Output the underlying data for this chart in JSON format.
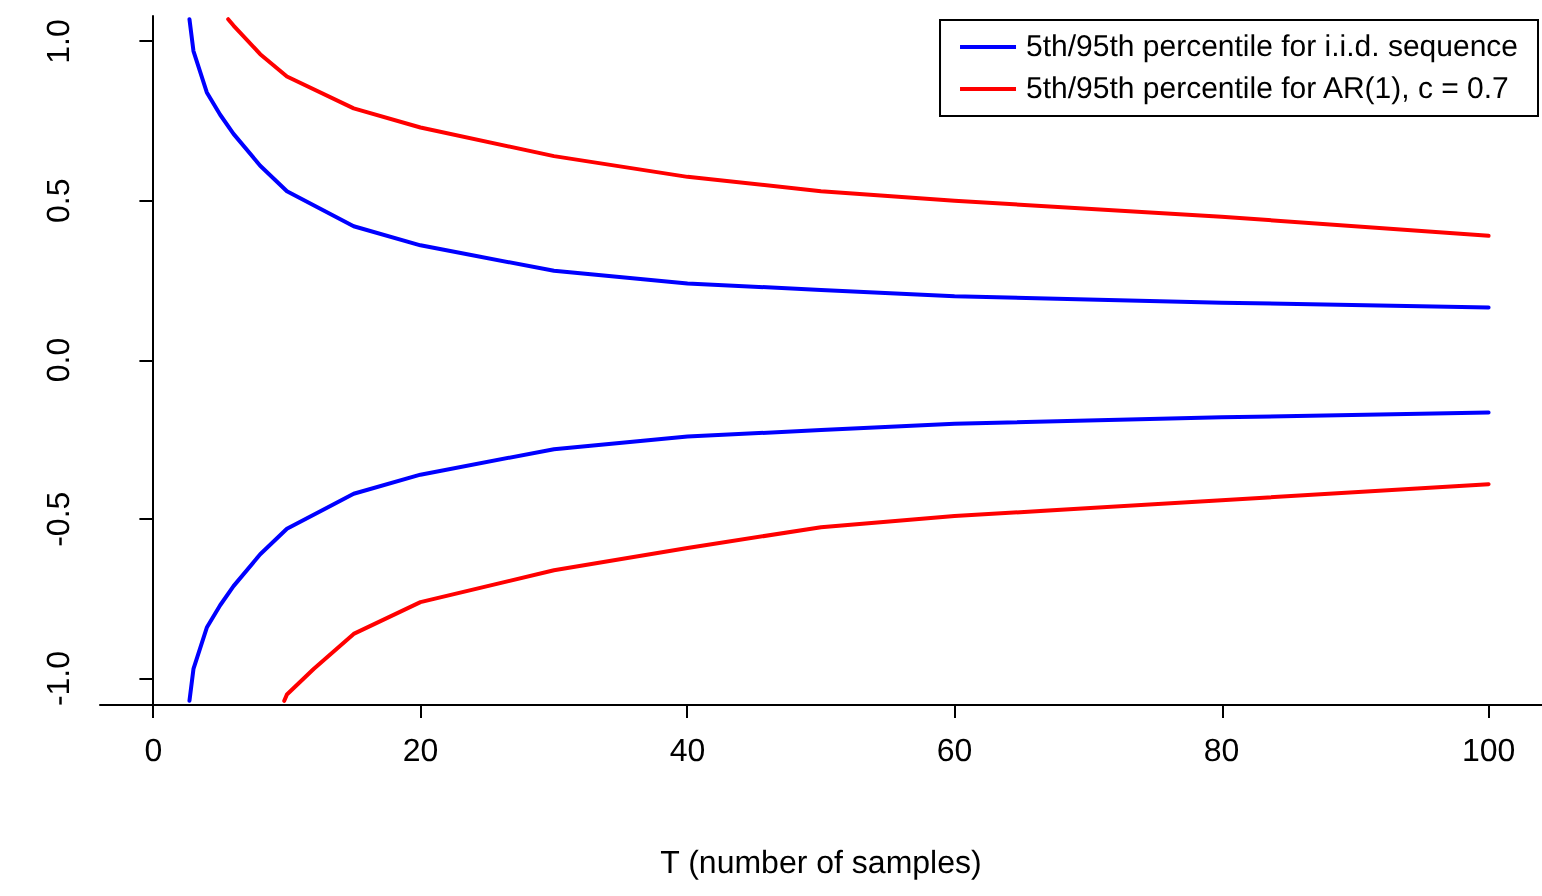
{
  "chart_data": {
    "type": "line",
    "xlabel": "T (number of samples)",
    "xlim": [
      -4,
      104
    ],
    "xticks": [
      0,
      20,
      40,
      60,
      80,
      100
    ],
    "ylim": [
      -1.08,
      1.08
    ],
    "yticks": [
      {
        "value": -1,
        "label": "-1.0"
      },
      {
        "value": -0.5,
        "label": "-0.5"
      },
      {
        "value": 0,
        "label": "0.0"
      },
      {
        "value": 0.5,
        "label": "0.5"
      },
      {
        "value": 1,
        "label": "1.0"
      }
    ],
    "grid": false,
    "legend": "top right",
    "marker": "none",
    "line_style": "solid",
    "series": [
      {
        "name": "5th/95th percentile for i.i.d. sequence",
        "color": "#0000ff",
        "x": [
          2.7,
          3,
          4,
          5,
          6,
          8,
          10,
          15,
          20,
          30,
          40,
          50,
          60,
          80,
          100
        ],
        "values": [
          1.07,
          0.97,
          0.84,
          0.77,
          0.71,
          0.61,
          0.53,
          0.42,
          0.36,
          0.28,
          0.24,
          0.22,
          0.2,
          0.18,
          0.165
        ]
      },
      {
        "color": "#0000ff",
        "x": [
          2.7,
          3,
          4,
          5,
          6,
          8,
          10,
          15,
          20,
          30,
          40,
          50,
          60,
          80,
          100
        ],
        "values": [
          -1.07,
          -0.97,
          -0.84,
          -0.77,
          -0.71,
          -0.61,
          -0.53,
          -0.42,
          -0.36,
          -0.28,
          -0.24,
          -0.22,
          -0.2,
          -0.18,
          -0.165
        ]
      },
      {
        "name": "5th/95th percentile for AR(1), c = 0.7",
        "color": "#ff0000",
        "x": [
          5.6,
          6,
          8,
          10,
          15,
          20,
          30,
          40,
          50,
          60,
          80,
          100
        ],
        "values": [
          1.07,
          1.05,
          0.96,
          0.89,
          0.79,
          0.73,
          0.64,
          0.575,
          0.53,
          0.5,
          0.45,
          0.39
        ]
      },
      {
        "color": "#ff0000",
        "x": [
          9.8,
          10,
          12,
          15,
          20,
          30,
          40,
          50,
          60,
          80,
          100
        ],
        "values": [
          -1.07,
          -1.05,
          -0.97,
          -0.86,
          -0.76,
          -0.66,
          -0.59,
          -0.525,
          -0.49,
          -0.44,
          -0.39
        ]
      }
    ]
  }
}
